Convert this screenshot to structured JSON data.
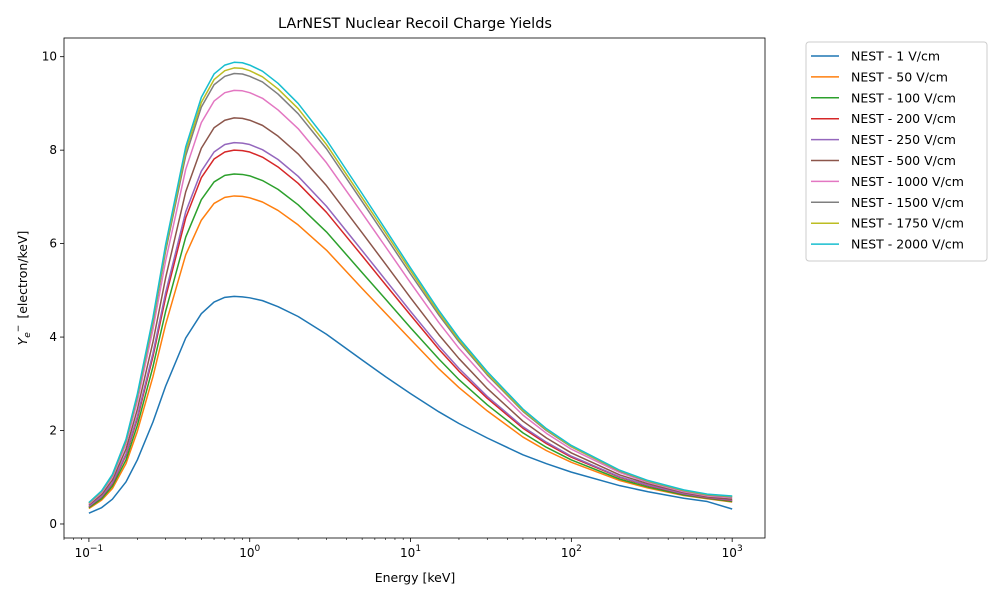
{
  "chart_data": {
    "type": "line",
    "title": "LArNEST Nuclear Recoil Charge Yields",
    "xlabel": "Energy [keV]",
    "ylabel_main": "Y",
    "ylabel_sub": "e",
    "ylabel_sup": "−",
    "ylabel_unit": "[electron/keV]",
    "xscale": "log",
    "xlim": [
      0.07,
      1600
    ],
    "ylim": [
      -0.3,
      10.4
    ],
    "x_ticks": [
      {
        "value": 0.1,
        "base": "10",
        "exp": "−1"
      },
      {
        "value": 1,
        "base": "10",
        "exp": "0"
      },
      {
        "value": 10,
        "base": "10",
        "exp": "1"
      },
      {
        "value": 100,
        "base": "10",
        "exp": "2"
      },
      {
        "value": 1000,
        "base": "10",
        "exp": "3"
      }
    ],
    "y_ticks": [
      {
        "value": 0,
        "label": "0"
      },
      {
        "value": 2,
        "label": "2"
      },
      {
        "value": 4,
        "label": "4"
      },
      {
        "value": 6,
        "label": "6"
      },
      {
        "value": 8,
        "label": "8"
      },
      {
        "value": 10,
        "label": "10"
      }
    ],
    "grid": false,
    "legend_position": "outside-right",
    "x": [
      0.1,
      0.12,
      0.14,
      0.17,
      0.2,
      0.25,
      0.3,
      0.4,
      0.5,
      0.6,
      0.7,
      0.8,
      0.9,
      1,
      1.2,
      1.5,
      2,
      3,
      5,
      7,
      10,
      15,
      20,
      30,
      50,
      70,
      100,
      200,
      300,
      500,
      700,
      1000
    ],
    "series": [
      {
        "name": "NEST - 1 V/cm",
        "color": "#1f77b4",
        "values": [
          0.23,
          0.35,
          0.53,
          0.9,
          1.37,
          2.18,
          2.95,
          3.98,
          4.5,
          4.75,
          4.85,
          4.87,
          4.86,
          4.84,
          4.78,
          4.65,
          4.44,
          4.06,
          3.51,
          3.15,
          2.79,
          2.4,
          2.15,
          1.84,
          1.48,
          1.29,
          1.11,
          0.82,
          0.69,
          0.55,
          0.48,
          0.32
        ]
      },
      {
        "name": "NEST - 50 V/cm",
        "color": "#ff7f0e",
        "values": [
          0.33,
          0.51,
          0.76,
          1.29,
          1.98,
          3.15,
          4.27,
          5.76,
          6.5,
          6.86,
          6.99,
          7.02,
          7.01,
          6.98,
          6.89,
          6.71,
          6.4,
          5.86,
          5.04,
          4.51,
          3.95,
          3.32,
          2.92,
          2.42,
          1.86,
          1.57,
          1.32,
          0.93,
          0.77,
          0.61,
          0.54,
          0.47
        ]
      },
      {
        "name": "NEST - 100 V/cm",
        "color": "#2ca02c",
        "values": [
          0.35,
          0.54,
          0.81,
          1.37,
          2.11,
          3.36,
          4.55,
          6.14,
          6.94,
          7.32,
          7.46,
          7.49,
          7.48,
          7.45,
          7.35,
          7.16,
          6.83,
          6.25,
          5.38,
          4.81,
          4.2,
          3.53,
          3.09,
          2.55,
          1.95,
          1.64,
          1.37,
          0.96,
          0.79,
          0.62,
          0.55,
          0.48
        ]
      },
      {
        "name": "NEST - 200 V/cm",
        "color": "#d62728",
        "values": [
          0.37,
          0.58,
          0.86,
          1.47,
          2.25,
          3.58,
          4.85,
          6.55,
          7.41,
          7.81,
          7.96,
          8.0,
          7.99,
          7.96,
          7.85,
          7.64,
          7.29,
          6.67,
          5.74,
          5.12,
          4.47,
          3.74,
          3.27,
          2.69,
          2.05,
          1.72,
          1.43,
          1.0,
          0.82,
          0.64,
          0.56,
          0.5
        ]
      },
      {
        "name": "NEST - 250 V/cm",
        "color": "#9467bd",
        "values": [
          0.38,
          0.59,
          0.88,
          1.5,
          2.3,
          3.65,
          4.95,
          6.68,
          7.55,
          7.96,
          8.12,
          8.16,
          8.15,
          8.12,
          8.01,
          7.8,
          7.44,
          6.8,
          5.85,
          5.22,
          4.55,
          3.81,
          3.33,
          2.73,
          2.08,
          1.75,
          1.45,
          1.01,
          0.83,
          0.65,
          0.57,
          0.51
        ]
      },
      {
        "name": "NEST - 500 V/cm",
        "color": "#8c564b",
        "values": [
          0.41,
          0.63,
          0.94,
          1.6,
          2.45,
          3.89,
          5.27,
          7.11,
          8.04,
          8.48,
          8.64,
          8.69,
          8.68,
          8.64,
          8.53,
          8.3,
          7.92,
          7.24,
          6.23,
          5.56,
          4.84,
          4.05,
          3.54,
          2.9,
          2.2,
          1.84,
          1.52,
          1.05,
          0.86,
          0.67,
          0.58,
          0.53
        ]
      },
      {
        "name": "NEST - 1000 V/cm",
        "color": "#e377c2",
        "values": [
          0.43,
          0.67,
          1.0,
          1.71,
          2.62,
          4.16,
          5.63,
          7.59,
          8.59,
          9.05,
          9.23,
          9.28,
          9.27,
          9.23,
          9.11,
          8.86,
          8.46,
          7.73,
          6.65,
          5.93,
          5.16,
          4.31,
          3.76,
          3.08,
          2.33,
          1.94,
          1.6,
          1.1,
          0.89,
          0.69,
          0.6,
          0.56
        ]
      },
      {
        "name": "NEST - 1500 V/cm",
        "color": "#7f7f7f",
        "values": [
          0.45,
          0.7,
          1.04,
          1.77,
          2.72,
          4.31,
          5.84,
          7.88,
          8.92,
          9.4,
          9.58,
          9.64,
          9.63,
          9.58,
          9.46,
          9.2,
          8.78,
          8.03,
          6.9,
          6.15,
          5.35,
          4.47,
          3.9,
          3.19,
          2.41,
          2.0,
          1.65,
          1.13,
          0.91,
          0.71,
          0.62,
          0.58
        ]
      },
      {
        "name": "NEST - 1750 V/cm",
        "color": "#bcbd22",
        "values": [
          0.45,
          0.7,
          1.05,
          1.79,
          2.75,
          4.36,
          5.91,
          7.98,
          9.02,
          9.51,
          9.7,
          9.76,
          9.75,
          9.7,
          9.57,
          9.31,
          8.89,
          8.12,
          6.98,
          6.23,
          5.42,
          4.52,
          3.94,
          3.22,
          2.43,
          2.02,
          1.66,
          1.14,
          0.92,
          0.72,
          0.63,
          0.59
        ]
      },
      {
        "name": "NEST - 2000 V/cm",
        "color": "#17becf",
        "values": [
          0.46,
          0.71,
          1.06,
          1.81,
          2.78,
          4.41,
          5.98,
          8.07,
          9.13,
          9.63,
          9.82,
          9.88,
          9.87,
          9.82,
          9.69,
          9.43,
          9.0,
          8.22,
          7.07,
          6.3,
          5.48,
          4.57,
          3.98,
          3.26,
          2.46,
          2.04,
          1.68,
          1.15,
          0.93,
          0.73,
          0.64,
          0.6
        ]
      }
    ]
  }
}
